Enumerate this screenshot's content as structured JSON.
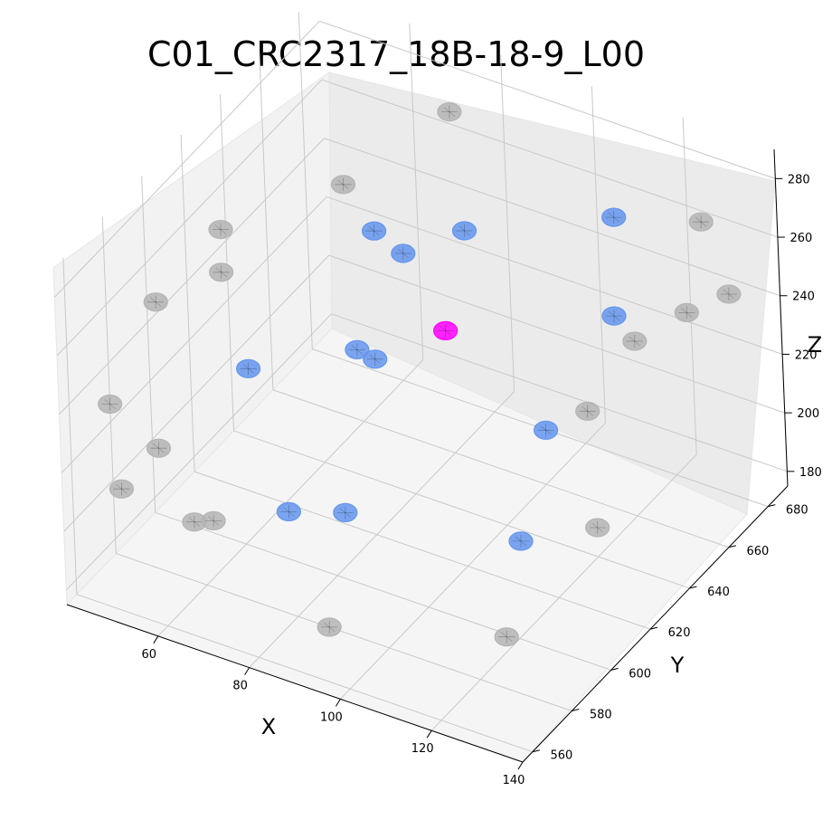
{
  "chart_data": {
    "type": "scatter3d",
    "title": "C01_CRC2317_18B-18-9_L00",
    "xlabel": "X",
    "ylabel": "Y",
    "zlabel": "Z",
    "xlim": [
      40,
      140
    ],
    "ylim": [
      555,
      690
    ],
    "zlim": [
      175,
      290
    ],
    "x_ticks": [
      60,
      80,
      100,
      120,
      140
    ],
    "y_ticks": [
      560,
      580,
      600,
      620,
      640,
      660,
      680
    ],
    "z_ticks": [
      180,
      200,
      220,
      240,
      260,
      280
    ],
    "grid": true,
    "colors": {
      "gray": "#b4b4b4",
      "blue": "#6495ed",
      "magenta": "#ff00ff"
    },
    "series": [
      {
        "color_key": "gray",
        "points": [
          {
            "x": 69,
            "y": 688,
            "z": 266
          },
          {
            "x": 124,
            "y": 688,
            "z": 258
          },
          {
            "x": 62,
            "y": 650,
            "z": 264
          },
          {
            "x": 48,
            "y": 620,
            "z": 262
          },
          {
            "x": 50,
            "y": 615,
            "z": 252
          },
          {
            "x": 42,
            "y": 600,
            "z": 248
          },
          {
            "x": 40,
            "y": 580,
            "z": 226
          },
          {
            "x": 55,
            "y": 570,
            "z": 226
          },
          {
            "x": 50,
            "y": 562,
            "z": 215
          },
          {
            "x": 60,
            "y": 575,
            "z": 200
          },
          {
            "x": 62,
            "y": 580,
            "z": 198
          },
          {
            "x": 95,
            "y": 562,
            "z": 192
          },
          {
            "x": 130,
            "y": 640,
            "z": 254
          },
          {
            "x": 135,
            "y": 655,
            "z": 256
          },
          {
            "x": 140,
            "y": 665,
            "z": 258
          },
          {
            "x": 128,
            "y": 620,
            "z": 243
          },
          {
            "x": 136,
            "y": 605,
            "z": 218
          },
          {
            "x": 133,
            "y": 565,
            "z": 207
          }
        ]
      },
      {
        "color_key": "blue",
        "points": [
          {
            "x": 73,
            "y": 640,
            "z": 261
          },
          {
            "x": 77,
            "y": 645,
            "z": 252
          },
          {
            "x": 84,
            "y": 660,
            "z": 253
          },
          {
            "x": 106,
            "y": 685,
            "z": 252
          },
          {
            "x": 112,
            "y": 670,
            "z": 232
          },
          {
            "x": 62,
            "y": 600,
            "z": 236
          },
          {
            "x": 75,
            "y": 625,
            "z": 232
          },
          {
            "x": 78,
            "y": 627,
            "z": 229
          },
          {
            "x": 114,
            "y": 630,
            "z": 222
          },
          {
            "x": 72,
            "y": 595,
            "z": 196
          },
          {
            "x": 80,
            "y": 605,
            "z": 193
          },
          {
            "x": 112,
            "y": 620,
            "z": 190
          }
        ]
      },
      {
        "color_key": "magenta",
        "points": [
          {
            "x": 88,
            "y": 640,
            "z": 235
          }
        ]
      }
    ]
  }
}
